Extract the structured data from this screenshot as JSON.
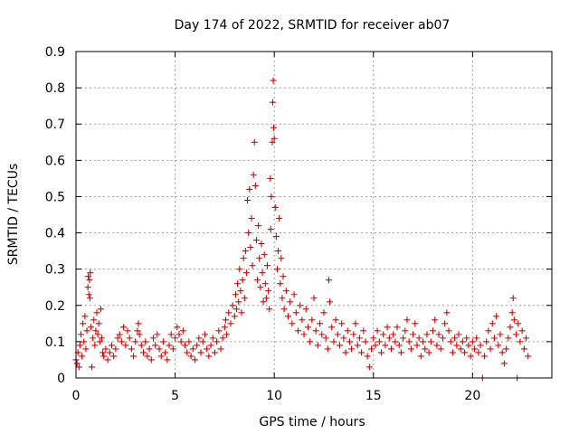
{
  "chart_data": {
    "type": "scatter",
    "title": "Day 174 of 2022, SRMTID for receiver ab07",
    "xlabel": "GPS time / hours",
    "ylabel": "SRMTID / TECUs",
    "xlim": [
      0,
      24
    ],
    "ylim": [
      0,
      0.9
    ],
    "xticks": [
      0,
      5,
      10,
      15,
      20
    ],
    "yticks": [
      0,
      0.1,
      0.2,
      0.3,
      0.4,
      0.5,
      0.6,
      0.7,
      0.8,
      0.9
    ],
    "ytick_labels": [
      "0",
      "0.1",
      "0.2",
      "0.3",
      "0.4",
      "0.5",
      "0.6",
      "0.7",
      "0.8",
      "0.9"
    ],
    "grid": true,
    "marker": "+",
    "color": "#e00000",
    "series": [
      {
        "name": "SRMTID",
        "points": [
          [
            0.0,
            0.05
          ],
          [
            0.05,
            0.04
          ],
          [
            0.1,
            0.07
          ],
          [
            0.15,
            0.03
          ],
          [
            0.2,
            0.09
          ],
          [
            0.25,
            0.12
          ],
          [
            0.3,
            0.06
          ],
          [
            0.35,
            0.15
          ],
          [
            0.4,
            0.1
          ],
          [
            0.45,
            0.17
          ],
          [
            0.5,
            0.08
          ],
          [
            0.55,
            0.13
          ],
          [
            0.6,
            0.25
          ],
          [
            0.62,
            0.28
          ],
          [
            0.65,
            0.23
          ],
          [
            0.68,
            0.27
          ],
          [
            0.7,
            0.22
          ],
          [
            0.72,
            0.29
          ],
          [
            0.75,
            0.14
          ],
          [
            0.8,
            0.03
          ],
          [
            0.85,
            0.11
          ],
          [
            0.9,
            0.16
          ],
          [
            0.95,
            0.09
          ],
          [
            1.0,
            0.13
          ],
          [
            1.05,
            0.18
          ],
          [
            1.1,
            0.12
          ],
          [
            1.15,
            0.15
          ],
          [
            1.2,
            0.1
          ],
          [
            1.25,
            0.19
          ],
          [
            1.3,
            0.11
          ],
          [
            1.35,
            0.07
          ],
          [
            1.4,
            0.06
          ],
          [
            1.5,
            0.08
          ],
          [
            1.6,
            0.05
          ],
          [
            1.7,
            0.07
          ],
          [
            1.8,
            0.09
          ],
          [
            1.9,
            0.06
          ],
          [
            2.0,
            0.08
          ],
          [
            2.1,
            0.11
          ],
          [
            2.2,
            0.12
          ],
          [
            2.3,
            0.1
          ],
          [
            2.4,
            0.14
          ],
          [
            2.5,
            0.09
          ],
          [
            2.6,
            0.13
          ],
          [
            2.7,
            0.11
          ],
          [
            2.8,
            0.08
          ],
          [
            2.9,
            0.06
          ],
          [
            3.0,
            0.1
          ],
          [
            3.1,
            0.13
          ],
          [
            3.15,
            0.15
          ],
          [
            3.2,
            0.12
          ],
          [
            3.3,
            0.09
          ],
          [
            3.4,
            0.07
          ],
          [
            3.5,
            0.1
          ],
          [
            3.6,
            0.06
          ],
          [
            3.7,
            0.08
          ],
          [
            3.8,
            0.05
          ],
          [
            3.9,
            0.11
          ],
          [
            4.0,
            0.09
          ],
          [
            4.1,
            0.12
          ],
          [
            4.2,
            0.08
          ],
          [
            4.3,
            0.06
          ],
          [
            4.4,
            0.1
          ],
          [
            4.5,
            0.07
          ],
          [
            4.6,
            0.05
          ],
          [
            4.7,
            0.09
          ],
          [
            4.8,
            0.12
          ],
          [
            4.9,
            0.08
          ],
          [
            5.0,
            0.11
          ],
          [
            5.1,
            0.14
          ],
          [
            5.2,
            0.12
          ],
          [
            5.3,
            0.1
          ],
          [
            5.4,
            0.13
          ],
          [
            5.5,
            0.09
          ],
          [
            5.6,
            0.07
          ],
          [
            5.7,
            0.1
          ],
          [
            5.8,
            0.06
          ],
          [
            5.9,
            0.08
          ],
          [
            6.0,
            0.05
          ],
          [
            6.1,
            0.09
          ],
          [
            6.2,
            0.11
          ],
          [
            6.3,
            0.07
          ],
          [
            6.4,
            0.1
          ],
          [
            6.5,
            0.12
          ],
          [
            6.6,
            0.08
          ],
          [
            6.7,
            0.06
          ],
          [
            6.8,
            0.09
          ],
          [
            6.9,
            0.11
          ],
          [
            7.0,
            0.07
          ],
          [
            7.1,
            0.1
          ],
          [
            7.2,
            0.13
          ],
          [
            7.3,
            0.08
          ],
          [
            7.4,
            0.11
          ],
          [
            7.5,
            0.14
          ],
          [
            7.55,
            0.16
          ],
          [
            7.6,
            0.12
          ],
          [
            7.7,
            0.18
          ],
          [
            7.8,
            0.15
          ],
          [
            7.9,
            0.2
          ],
          [
            8.0,
            0.17
          ],
          [
            8.05,
            0.23
          ],
          [
            8.1,
            0.19
          ],
          [
            8.15,
            0.26
          ],
          [
            8.2,
            0.21
          ],
          [
            8.25,
            0.3
          ],
          [
            8.3,
            0.24
          ],
          [
            8.35,
            0.18
          ],
          [
            8.4,
            0.27
          ],
          [
            8.45,
            0.33
          ],
          [
            8.5,
            0.22
          ],
          [
            8.55,
            0.35
          ],
          [
            8.6,
            0.29
          ],
          [
            8.65,
            0.49
          ],
          [
            8.7,
            0.4
          ],
          [
            8.75,
            0.52
          ],
          [
            8.8,
            0.36
          ],
          [
            8.85,
            0.44
          ],
          [
            8.9,
            0.31
          ],
          [
            8.95,
            0.56
          ],
          [
            9.0,
            0.65
          ],
          [
            9.05,
            0.53
          ],
          [
            9.1,
            0.38
          ],
          [
            9.15,
            0.27
          ],
          [
            9.2,
            0.42
          ],
          [
            9.25,
            0.33
          ],
          [
            9.3,
            0.25
          ],
          [
            9.35,
            0.37
          ],
          [
            9.4,
            0.29
          ],
          [
            9.45,
            0.21
          ],
          [
            9.5,
            0.34
          ],
          [
            9.55,
            0.26
          ],
          [
            9.6,
            0.22
          ],
          [
            9.65,
            0.31
          ],
          [
            9.7,
            0.24
          ],
          [
            9.75,
            0.19
          ],
          [
            9.8,
            0.55
          ],
          [
            9.82,
            0.41
          ],
          [
            9.85,
            0.5
          ],
          [
            9.9,
            0.65
          ],
          [
            9.92,
            0.76
          ],
          [
            9.95,
            0.82
          ],
          [
            9.97,
            0.69
          ],
          [
            10.0,
            0.66
          ],
          [
            10.05,
            0.47
          ],
          [
            10.1,
            0.39
          ],
          [
            10.15,
            0.3
          ],
          [
            10.2,
            0.35
          ],
          [
            10.25,
            0.44
          ],
          [
            10.3,
            0.26
          ],
          [
            10.35,
            0.33
          ],
          [
            10.4,
            0.22
          ],
          [
            10.45,
            0.28
          ],
          [
            10.5,
            0.19
          ],
          [
            10.6,
            0.24
          ],
          [
            10.7,
            0.17
          ],
          [
            10.8,
            0.21
          ],
          [
            10.9,
            0.15
          ],
          [
            11.0,
            0.23
          ],
          [
            11.1,
            0.18
          ],
          [
            11.2,
            0.13
          ],
          [
            11.3,
            0.2
          ],
          [
            11.4,
            0.16
          ],
          [
            11.5,
            0.12
          ],
          [
            11.6,
            0.19
          ],
          [
            11.7,
            0.14
          ],
          [
            11.8,
            0.1
          ],
          [
            11.9,
            0.16
          ],
          [
            12.0,
            0.22
          ],
          [
            12.1,
            0.13
          ],
          [
            12.2,
            0.09
          ],
          [
            12.3,
            0.15
          ],
          [
            12.4,
            0.12
          ],
          [
            12.5,
            0.18
          ],
          [
            12.6,
            0.11
          ],
          [
            12.7,
            0.08
          ],
          [
            12.75,
            0.27
          ],
          [
            12.8,
            0.21
          ],
          [
            12.9,
            0.14
          ],
          [
            13.0,
            0.1
          ],
          [
            13.1,
            0.16
          ],
          [
            13.2,
            0.12
          ],
          [
            13.3,
            0.09
          ],
          [
            13.4,
            0.15
          ],
          [
            13.5,
            0.11
          ],
          [
            13.6,
            0.07
          ],
          [
            13.7,
            0.13
          ],
          [
            13.8,
            0.1
          ],
          [
            13.9,
            0.08
          ],
          [
            14.0,
            0.12
          ],
          [
            14.1,
            0.15
          ],
          [
            14.2,
            0.09
          ],
          [
            14.3,
            0.11
          ],
          [
            14.4,
            0.07
          ],
          [
            14.5,
            0.13
          ],
          [
            14.6,
            0.1
          ],
          [
            14.7,
            0.06
          ],
          [
            14.8,
            0.03
          ],
          [
            14.9,
            0.08
          ],
          [
            15.0,
            0.11
          ],
          [
            15.1,
            0.09
          ],
          [
            15.2,
            0.13
          ],
          [
            15.3,
            0.1
          ],
          [
            15.4,
            0.07
          ],
          [
            15.5,
            0.12
          ],
          [
            15.6,
            0.09
          ],
          [
            15.7,
            0.14
          ],
          [
            15.8,
            0.11
          ],
          [
            15.9,
            0.08
          ],
          [
            16.0,
            0.12
          ],
          [
            16.1,
            0.1
          ],
          [
            16.2,
            0.14
          ],
          [
            16.3,
            0.09
          ],
          [
            16.4,
            0.07
          ],
          [
            16.5,
            0.11
          ],
          [
            16.6,
            0.13
          ],
          [
            16.7,
            0.16
          ],
          [
            16.8,
            0.1
          ],
          [
            16.9,
            0.08
          ],
          [
            17.0,
            0.12
          ],
          [
            17.1,
            0.15
          ],
          [
            17.2,
            0.09
          ],
          [
            17.3,
            0.11
          ],
          [
            17.4,
            0.06
          ],
          [
            17.5,
            0.1
          ],
          [
            17.6,
            0.08
          ],
          [
            17.7,
            0.12
          ],
          [
            17.8,
            0.07
          ],
          [
            17.9,
            0.1
          ],
          [
            18.0,
            0.13
          ],
          [
            18.1,
            0.16
          ],
          [
            18.2,
            0.09
          ],
          [
            18.3,
            0.12
          ],
          [
            18.4,
            0.08
          ],
          [
            18.5,
            0.11
          ],
          [
            18.6,
            0.15
          ],
          [
            18.7,
            0.18
          ],
          [
            18.8,
            0.13
          ],
          [
            18.9,
            0.1
          ],
          [
            19.0,
            0.07
          ],
          [
            19.1,
            0.11
          ],
          [
            19.2,
            0.09
          ],
          [
            19.3,
            0.12
          ],
          [
            19.4,
            0.08
          ],
          [
            19.5,
            0.1
          ],
          [
            19.6,
            0.07
          ],
          [
            19.7,
            0.11
          ],
          [
            19.8,
            0.09
          ],
          [
            19.9,
            0.06
          ],
          [
            20.0,
            0.1
          ],
          [
            20.1,
            0.08
          ],
          [
            20.2,
            0.11
          ],
          [
            20.3,
            0.07
          ],
          [
            20.4,
            0.09
          ],
          [
            20.5,
            0.0
          ],
          [
            20.6,
            0.06
          ],
          [
            20.7,
            0.1
          ],
          [
            20.8,
            0.13
          ],
          [
            20.9,
            0.08
          ],
          [
            21.0,
            0.15
          ],
          [
            21.1,
            0.11
          ],
          [
            21.2,
            0.17
          ],
          [
            21.3,
            0.09
          ],
          [
            21.4,
            0.12
          ],
          [
            21.5,
            0.07
          ],
          [
            21.6,
            0.04
          ],
          [
            21.7,
            0.08
          ],
          [
            21.8,
            0.11
          ],
          [
            21.9,
            0.14
          ],
          [
            22.0,
            0.18
          ],
          [
            22.05,
            0.22
          ],
          [
            22.1,
            0.16
          ],
          [
            22.2,
            0.12
          ],
          [
            22.25,
            0.0
          ],
          [
            22.3,
            0.15
          ],
          [
            22.4,
            0.1
          ],
          [
            22.5,
            0.13
          ],
          [
            22.6,
            0.08
          ],
          [
            22.7,
            0.11
          ],
          [
            22.8,
            0.06
          ]
        ]
      }
    ]
  }
}
